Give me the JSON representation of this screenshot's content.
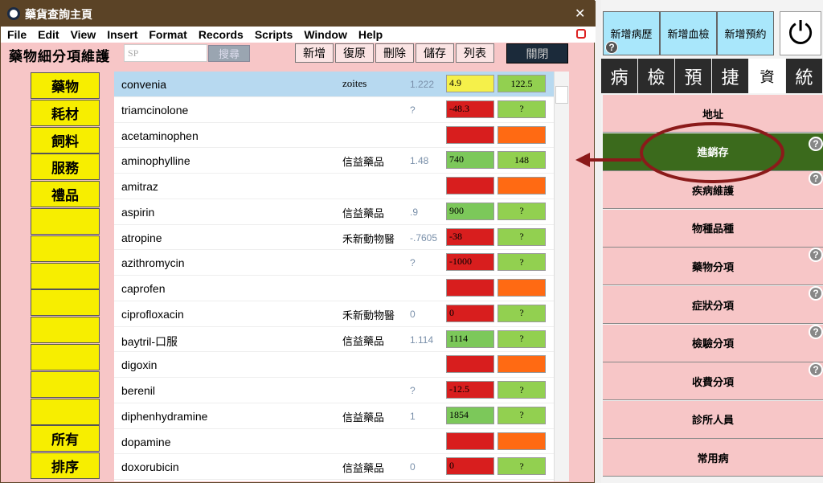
{
  "window": {
    "title": "藥貨查詢主頁",
    "close": "✕",
    "menu": [
      "File",
      "Edit",
      "View",
      "Insert",
      "Format",
      "Records",
      "Scripts",
      "Window",
      "Help"
    ],
    "toolbar": {
      "label": "藥物細分項維護",
      "search_value": "SP",
      "search_button": "搜尋",
      "buttons": [
        "新增",
        "復原",
        "刪除",
        "儲存",
        "列表"
      ],
      "close_button": "關閉"
    },
    "side_buttons": [
      "藥物",
      "耗材",
      "飼料",
      "服務",
      "禮品",
      null,
      null,
      null,
      null,
      null,
      null,
      null,
      null,
      "所有",
      "排序"
    ],
    "rows": [
      {
        "name": "convenia",
        "supplier": "zoites",
        "price": "1.222",
        "stock": "4.9",
        "stock_color": "#f5f04a",
        "order": "122.5",
        "order_color": "#92d050"
      },
      {
        "name": "triamcinolone",
        "price": "?",
        "stock": "-48.3",
        "stock_color": "#d81e1e",
        "order": "?",
        "order_color": "#92d050"
      },
      {
        "name": "acetaminophen",
        "stock_color": "#d81e1e",
        "order_color": "#ff6a13"
      },
      {
        "name": "aminophylline",
        "supplier": "信益藥品",
        "price": "1.48",
        "stock": "740",
        "stock_color": "#7cc85a",
        "order": "148",
        "order_color": "#92d050"
      },
      {
        "name": "amitraz",
        "stock_color": "#d81e1e",
        "order_color": "#ff6a13"
      },
      {
        "name": "aspirin",
        "supplier": "信益藥品",
        "price": ".9",
        "stock": "900",
        "stock_color": "#7cc85a",
        "order": "?",
        "order_color": "#92d050"
      },
      {
        "name": "atropine",
        "supplier": "禾新動物醫",
        "price": "-.7605",
        "stock": "-38",
        "stock_color": "#d81e1e",
        "order": "?",
        "order_color": "#92d050"
      },
      {
        "name": "azithromycin",
        "price": "?",
        "stock": "-1000",
        "stock_color": "#d81e1e",
        "order": "?",
        "order_color": "#92d050"
      },
      {
        "name": "caprofen",
        "stock_color": "#d81e1e",
        "order_color": "#ff6a13"
      },
      {
        "name": "ciprofloxacin",
        "supplier": "禾新動物醫",
        "price": "0",
        "stock": "0",
        "stock_color": "#d81e1e",
        "order": "?",
        "order_color": "#92d050"
      },
      {
        "name": "baytril-口服",
        "supplier": "信益藥品",
        "price": "1.114",
        "stock": "1114",
        "stock_color": "#7cc85a",
        "order": "?",
        "order_color": "#92d050"
      },
      {
        "name": "digoxin",
        "stock_color": "#d81e1e",
        "order_color": "#ff6a13"
      },
      {
        "name": "berenil",
        "price": "?",
        "stock": "-12.5",
        "stock_color": "#d81e1e",
        "order": "?",
        "order_color": "#92d050"
      },
      {
        "name": "diphenhydramine",
        "supplier": "信益藥品",
        "price": "1",
        "stock": "1854",
        "stock_color": "#7cc85a",
        "order": "?",
        "order_color": "#92d050"
      },
      {
        "name": "dopamine",
        "stock_color": "#d81e1e",
        "order_color": "#ff6a13"
      },
      {
        "name": "doxorubicin",
        "supplier": "信益藥品",
        "price": "0",
        "stock": "0",
        "stock_color": "#d81e1e",
        "order": "?",
        "order_color": "#92d050"
      }
    ]
  },
  "side_panel": {
    "top_buttons": [
      {
        "label": "新增病歷",
        "help": "?"
      },
      {
        "label": "新增血檢"
      },
      {
        "label": "新增預約"
      }
    ],
    "power": "⏻",
    "tabs": [
      "病",
      "檢",
      "預",
      "捷",
      "資",
      "統"
    ],
    "selected_tab": 4,
    "items": [
      {
        "label": "地址"
      },
      {
        "label": "進銷存",
        "help": "?"
      },
      {
        "label": "疾病維護",
        "help": "?"
      },
      {
        "label": "物種品種"
      },
      {
        "label": "藥物分項",
        "help": "?"
      },
      {
        "label": "症狀分項",
        "help": "?"
      },
      {
        "label": "檢驗分項",
        "help": "?"
      },
      {
        "label": "收費分項",
        "help": "?"
      },
      {
        "label": "診所人員"
      },
      {
        "label": "常用病"
      }
    ],
    "selected_item": 1
  }
}
